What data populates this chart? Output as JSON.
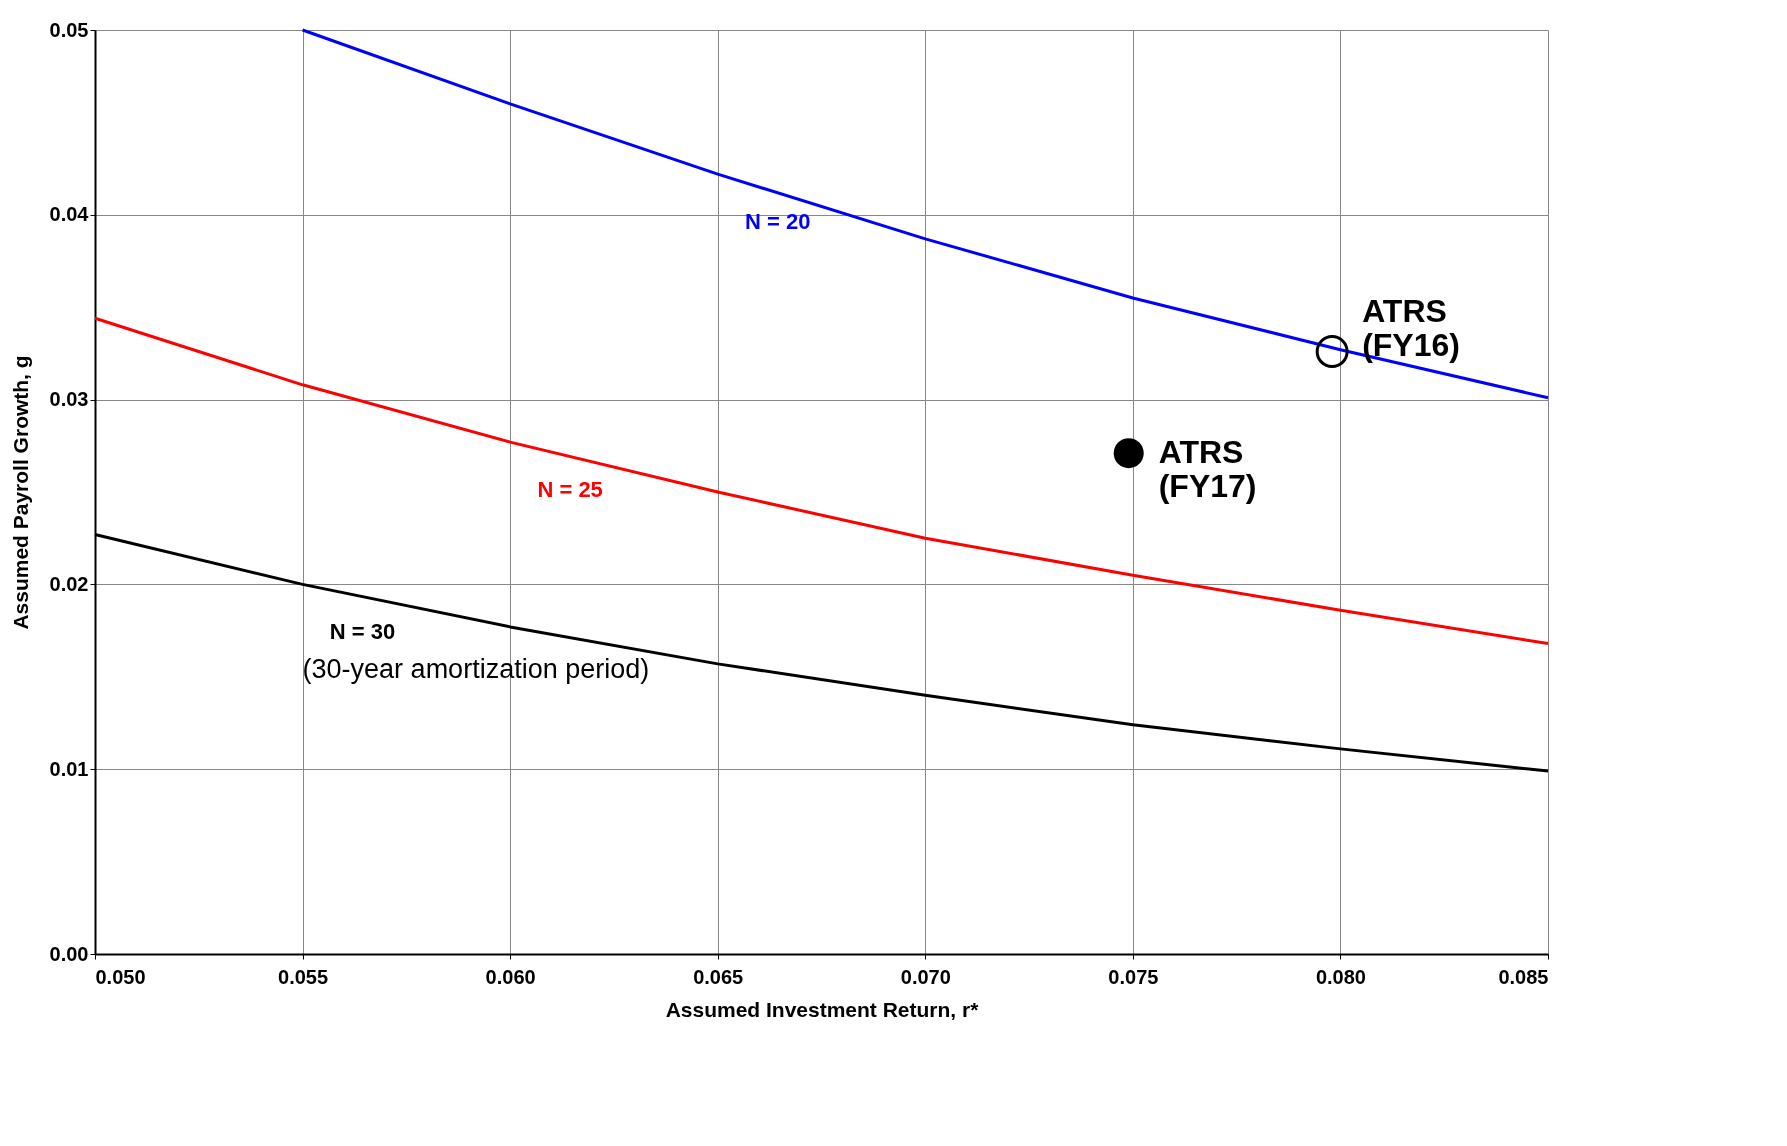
{
  "chart_data": {
    "type": "line",
    "xlabel": "Assumed Investment Return, r*",
    "ylabel": "Assumed Payroll Growth, g",
    "xlim": [
      0.05,
      0.085
    ],
    "ylim": [
      0,
      0.05
    ],
    "xticks": [
      {
        "value": 0.05,
        "label": "0.050"
      },
      {
        "value": 0.055,
        "label": "0.055"
      },
      {
        "value": 0.06,
        "label": "0.060"
      },
      {
        "value": 0.065,
        "label": "0.065"
      },
      {
        "value": 0.07,
        "label": "0.070"
      },
      {
        "value": 0.075,
        "label": "0.075"
      },
      {
        "value": 0.08,
        "label": "0.080"
      },
      {
        "value": 0.085,
        "label": "0.085"
      }
    ],
    "yticks": [
      {
        "value": 0,
        "label": "0.00"
      },
      {
        "value": 0.01,
        "label": "0.01"
      },
      {
        "value": 0.02,
        "label": "0.02"
      },
      {
        "value": 0.03,
        "label": "0.03"
      },
      {
        "value": 0.04,
        "label": "0.04"
      },
      {
        "value": 0.05,
        "label": "0.05"
      }
    ],
    "grid": true,
    "legend": false,
    "marker": "none",
    "series": [
      {
        "name": "N = 20",
        "color": "#0000ff",
        "x": [
          0.055,
          0.06,
          0.065,
          0.07,
          0.075,
          0.08,
          0.085
        ],
        "values": [
          0.05,
          0.046,
          0.0422,
          0.0387,
          0.0355,
          0.0327,
          0.0301
        ]
      },
      {
        "name": "N = 25",
        "color": "#ff0000",
        "x": [
          0.05,
          0.055,
          0.06,
          0.065,
          0.07,
          0.075,
          0.08,
          0.085
        ],
        "values": [
          0.0344,
          0.0308,
          0.0277,
          0.025,
          0.0225,
          0.0205,
          0.0186,
          0.0168
        ]
      },
      {
        "name": "N = 30",
        "color": "#000000",
        "x": [
          0.05,
          0.055,
          0.06,
          0.065,
          0.07,
          0.075,
          0.08,
          0.085
        ],
        "values": [
          0.0227,
          0.02,
          0.0177,
          0.0157,
          0.014,
          0.0124,
          0.0111,
          0.0099
        ]
      },
      {
        "type": "scatter",
        "name": "ATRS (FY16)",
        "color": "#000000",
        "marker": "circle",
        "x": [
          0.0798
        ],
        "values": [
          0.0326
        ]
      },
      {
        "type": "scatter",
        "name": "ATRS (FY17)",
        "color": "#000000",
        "marker": "circle",
        "x": [
          0.0749
        ],
        "values": [
          0.0271
        ]
      }
    ],
    "annotations": [
      "(30-year amortization period)"
    ]
  }
}
